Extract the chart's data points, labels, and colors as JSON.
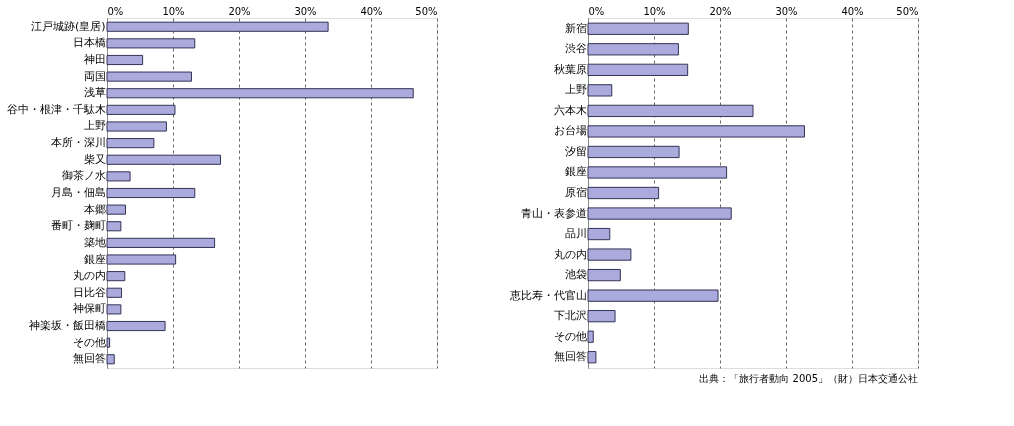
{
  "chart_data": [
    {
      "type": "bar",
      "orientation": "horizontal",
      "categories": [
        "江戸城跡(皇居)",
        "日本橋",
        "神田",
        "両国",
        "浅草",
        "谷中・根津・千駄木",
        "上野",
        "本所・深川",
        "柴又",
        "御茶ノ水",
        "月島・佃島",
        "本郷",
        "番町・麹町",
        "築地",
        "銀座",
        "丸の内",
        "日比谷",
        "神保町",
        "神楽坂・飯田橋",
        "その他",
        "無回答"
      ],
      "values": [
        33.5,
        13.3,
        5.4,
        12.8,
        46.4,
        10.3,
        9.0,
        7.1,
        17.2,
        3.5,
        13.3,
        2.8,
        2.1,
        16.3,
        10.4,
        2.7,
        2.2,
        2.1,
        8.8,
        0.4,
        1.1
      ],
      "color": "#aaaadd",
      "xlim": [
        0,
        50
      ],
      "xticks": [
        {
          "value": 0,
          "label": "0%"
        },
        {
          "value": 10,
          "label": "10%"
        },
        {
          "value": 20,
          "label": "20%"
        },
        {
          "value": 30,
          "label": "30%"
        },
        {
          "value": 40,
          "label": "40%"
        },
        {
          "value": 50,
          "label": "50%"
        }
      ],
      "grid": "x"
    },
    {
      "type": "bar",
      "orientation": "horizontal",
      "categories": [
        "新宿",
        "渋谷",
        "秋葉原",
        "上野",
        "六本木",
        "お台場",
        "汐留",
        "銀座",
        "原宿",
        "青山・表参道",
        "品川",
        "丸の内",
        "池袋",
        "恵比寿・代官山",
        "下北沢",
        "その他",
        "無回答"
      ],
      "values": [
        15.2,
        13.7,
        15.1,
        3.6,
        25.0,
        32.8,
        13.8,
        21.0,
        10.7,
        21.7,
        3.3,
        6.5,
        4.9,
        19.7,
        4.1,
        0.8,
        1.2
      ],
      "color": "#aaaadd",
      "xlim": [
        0,
        50
      ],
      "xticks": [
        {
          "value": 0,
          "label": "0%"
        },
        {
          "value": 10,
          "label": "10%"
        },
        {
          "value": 20,
          "label": "20%"
        },
        {
          "value": 30,
          "label": "30%"
        },
        {
          "value": 40,
          "label": "40%"
        },
        {
          "value": 50,
          "label": "50%"
        }
      ],
      "grid": "x",
      "annotations": [
        "出典：「旅行者動向 2005」（財）日本交通公社"
      ]
    }
  ]
}
